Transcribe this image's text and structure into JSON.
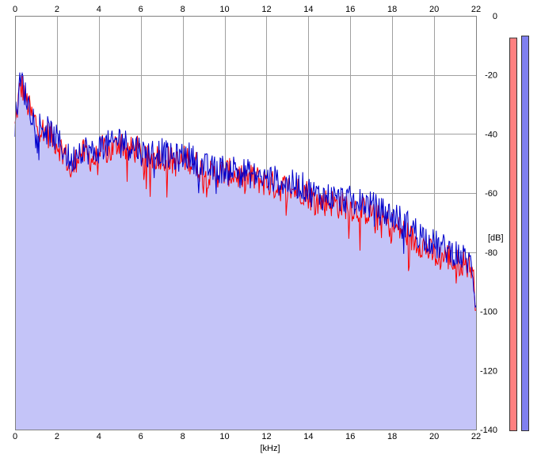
{
  "chart_data": {
    "type": "area",
    "xlabel": "[kHz]",
    "ylabel": "[dB]",
    "xlim": [
      0,
      22
    ],
    "ylim": [
      -140,
      0
    ],
    "x_ticks": [
      0,
      2,
      4,
      6,
      8,
      10,
      12,
      14,
      16,
      18,
      20,
      22
    ],
    "y_ticks": [
      0,
      -20,
      -40,
      -60,
      -80,
      -100,
      -120,
      -140
    ],
    "grid": true,
    "series": [
      {
        "color": "#ff0000",
        "x": [
          0,
          0.2,
          0.35,
          0.5,
          0.8,
          1.2,
          1.6,
          2.0,
          2.4,
          2.7,
          3.0,
          3.4,
          3.8,
          4.2,
          4.6,
          5.0,
          5.4,
          5.8,
          6.2,
          6.6,
          7.0,
          7.4,
          7.8,
          8.2,
          8.6,
          9.0,
          9.4,
          9.8,
          10.2,
          10.6,
          11.0,
          11.4,
          11.8,
          12.2,
          12.6,
          13.0,
          13.4,
          13.8,
          14.2,
          14.6,
          15.0,
          15.4,
          15.8,
          16.2,
          16.6,
          17.0,
          17.4,
          17.8,
          18.2,
          18.6,
          19.0,
          19.4,
          19.8,
          20.2,
          20.6,
          21.0,
          21.4,
          21.8,
          22.0
        ],
        "y": [
          -38,
          -26,
          -24,
          -28,
          -34,
          -38,
          -40,
          -43,
          -47,
          -54,
          -46,
          -47,
          -49,
          -45,
          -46,
          -42,
          -46,
          -45,
          -49,
          -48,
          -47,
          -49,
          -50,
          -48,
          -50,
          -53,
          -54,
          -53,
          -53,
          -54,
          -55,
          -55,
          -56,
          -57,
          -58,
          -58,
          -59,
          -59,
          -62,
          -63,
          -63,
          -64,
          -64,
          -65,
          -66,
          -66,
          -69,
          -70,
          -72,
          -73,
          -76,
          -77,
          -80,
          -82,
          -81,
          -84,
          -83,
          -85,
          -97
        ]
      },
      {
        "color": "#0000cc",
        "x": [
          0,
          0.2,
          0.35,
          0.5,
          0.8,
          1.2,
          1.6,
          2.0,
          2.4,
          2.7,
          3.0,
          3.4,
          3.8,
          4.2,
          4.6,
          5.0,
          5.4,
          5.8,
          6.2,
          6.6,
          7.0,
          7.4,
          7.8,
          8.2,
          8.6,
          9.0,
          9.4,
          9.8,
          10.2,
          10.6,
          11.0,
          11.4,
          11.8,
          12.2,
          12.6,
          13.0,
          13.4,
          13.8,
          14.2,
          14.6,
          15.0,
          15.4,
          15.8,
          16.2,
          16.6,
          17.0,
          17.4,
          17.8,
          18.2,
          18.6,
          19.0,
          19.4,
          19.8,
          20.2,
          20.6,
          21.0,
          21.4,
          21.8,
          22.0
        ],
        "y": [
          -36,
          -24,
          -22,
          -27,
          -33,
          -37,
          -39,
          -42,
          -46,
          -50,
          -45,
          -45,
          -47,
          -43,
          -44,
          -41,
          -44,
          -44,
          -47,
          -46,
          -46,
          -48,
          -48,
          -47,
          -49,
          -51,
          -52,
          -52,
          -51,
          -52,
          -53,
          -54,
          -55,
          -55,
          -56,
          -57,
          -57,
          -58,
          -60,
          -61,
          -61,
          -62,
          -62,
          -63,
          -63,
          -64,
          -66,
          -67,
          -68,
          -70,
          -72,
          -74,
          -76,
          -78,
          -79,
          -80,
          -82,
          -84,
          -98
        ]
      }
    ],
    "fill_color": "#c4c4f8",
    "level_meters": [
      {
        "color": "#ff8080",
        "level": 0.985
      },
      {
        "color": "#8080f0",
        "level": 0.99
      }
    ]
  }
}
